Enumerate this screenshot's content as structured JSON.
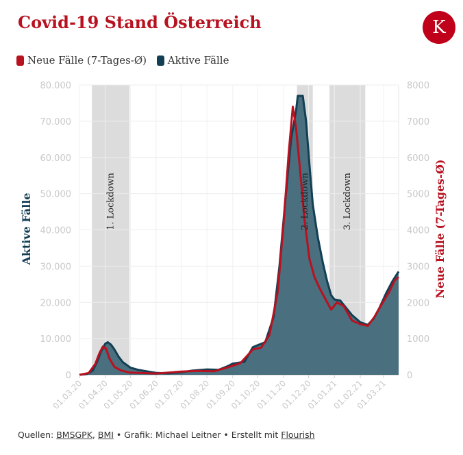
{
  "header": {
    "title": "Covid-19 Stand Österreich",
    "logo_letter": "K"
  },
  "colors": {
    "title": "#b8111f",
    "new_cases": "#b8111f",
    "active_cases": "#123f54",
    "area_fill": "#4a6f7e",
    "lockdown_band": "#dcdcdc",
    "logo_bg": "#c0001a"
  },
  "legend": {
    "items": [
      {
        "label": "Neue Fälle (7-Tages-Ø)",
        "color": "#b8111f"
      },
      {
        "label": "Aktive Fälle",
        "color": "#123f54"
      }
    ]
  },
  "footer": {
    "prefix": "Quellen: ",
    "source1": "BMSGPK",
    "sep1": ", ",
    "source2": "BMI",
    "middle": " • Grafik: Michael Leitner • Erstellt mit ",
    "tool": "Flourish"
  },
  "chart_data": {
    "type": "area",
    "ylabel_left": "Aktive Fälle",
    "ylabel_right": "Neue Fälle (7-Tages-Ø)",
    "ylim_left": [
      0,
      80000
    ],
    "ylim_right": [
      0,
      8000
    ],
    "yticks_left": [
      "0",
      "10.000",
      "20.000",
      "30.000",
      "40.000",
      "50.000",
      "60.000",
      "70.000",
      "80.000"
    ],
    "yticks_right": [
      "0",
      "1000",
      "2000",
      "3000",
      "4000",
      "5000",
      "6000",
      "7000",
      "8000"
    ],
    "xticks": [
      "01.03.20",
      "01.04.20",
      "01.05.20",
      "01.06.20",
      "01.07.20",
      "01.08.20",
      "01.09.20",
      "01.10.20",
      "01.11.20",
      "01.12.20",
      "01.01.21",
      "01.02.21",
      "01.03.21"
    ],
    "x_start": "2020-03-01",
    "x_end": "2021-03-19",
    "grid": true,
    "legend_position": "top-left",
    "lockdowns": [
      {
        "label": "1. Lockdown",
        "start": "2020-03-16",
        "end": "2020-04-30"
      },
      {
        "label": "2. Lockdown",
        "start": "2020-11-17",
        "end": "2020-12-06"
      },
      {
        "label": "3. Lockdown",
        "start": "2020-12-26",
        "end": "2021-02-07"
      }
    ],
    "series": [
      {
        "name": "Aktive Fälle",
        "axis": "left",
        "points": [
          [
            "2020-03-01",
            0
          ],
          [
            "2020-03-10",
            200
          ],
          [
            "2020-03-17",
            1200
          ],
          [
            "2020-03-22",
            3500
          ],
          [
            "2020-03-27",
            6500
          ],
          [
            "2020-04-01",
            8600
          ],
          [
            "2020-04-04",
            9000
          ],
          [
            "2020-04-08",
            8300
          ],
          [
            "2020-04-12",
            7000
          ],
          [
            "2020-04-17",
            5000
          ],
          [
            "2020-04-22",
            3500
          ],
          [
            "2020-05-01",
            2000
          ],
          [
            "2020-05-10",
            1400
          ],
          [
            "2020-05-20",
            1000
          ],
          [
            "2020-06-01",
            550
          ],
          [
            "2020-06-15",
            400
          ],
          [
            "2020-07-01",
            700
          ],
          [
            "2020-07-15",
            1200
          ],
          [
            "2020-08-01",
            1500
          ],
          [
            "2020-08-15",
            1400
          ],
          [
            "2020-08-25",
            2300
          ],
          [
            "2020-09-01",
            3100
          ],
          [
            "2020-09-15",
            3600
          ],
          [
            "2020-09-25",
            7600
          ],
          [
            "2020-10-01",
            8200
          ],
          [
            "2020-10-10",
            9000
          ],
          [
            "2020-10-20",
            16000
          ],
          [
            "2020-10-27",
            30000
          ],
          [
            "2020-11-03",
            48000
          ],
          [
            "2020-11-10",
            65000
          ],
          [
            "2020-11-16",
            73000
          ],
          [
            "2020-11-18",
            77000
          ],
          [
            "2020-11-24",
            77000
          ],
          [
            "2020-11-28",
            70000
          ],
          [
            "2020-12-02",
            58000
          ],
          [
            "2020-12-06",
            47000
          ],
          [
            "2020-12-12",
            38000
          ],
          [
            "2020-12-18",
            31000
          ],
          [
            "2020-12-23",
            26000
          ],
          [
            "2020-12-28",
            22000
          ],
          [
            "2021-01-01",
            20800
          ],
          [
            "2021-01-08",
            20500
          ],
          [
            "2021-01-15",
            18500
          ],
          [
            "2021-01-22",
            16500
          ],
          [
            "2021-02-01",
            14500
          ],
          [
            "2021-02-10",
            13800
          ],
          [
            "2021-02-17",
            15500
          ],
          [
            "2021-02-24",
            18500
          ],
          [
            "2021-03-04",
            22500
          ],
          [
            "2021-03-12",
            26000
          ],
          [
            "2021-03-19",
            28500
          ]
        ]
      },
      {
        "name": "Neue Fälle (7-Tages-Ø)",
        "axis": "right",
        "points": [
          [
            "2020-03-01",
            0
          ],
          [
            "2020-03-12",
            50
          ],
          [
            "2020-03-20",
            300
          ],
          [
            "2020-03-25",
            600
          ],
          [
            "2020-03-29",
            780
          ],
          [
            "2020-04-02",
            720
          ],
          [
            "2020-04-06",
            450
          ],
          [
            "2020-04-12",
            220
          ],
          [
            "2020-04-20",
            120
          ],
          [
            "2020-05-01",
            60
          ],
          [
            "2020-06-01",
            35
          ],
          [
            "2020-07-01",
            90
          ],
          [
            "2020-07-20",
            110
          ],
          [
            "2020-08-10",
            100
          ],
          [
            "2020-08-25",
            200
          ],
          [
            "2020-09-10",
            320
          ],
          [
            "2020-09-25",
            700
          ],
          [
            "2020-10-05",
            750
          ],
          [
            "2020-10-15",
            1100
          ],
          [
            "2020-10-25",
            2300
          ],
          [
            "2020-11-01",
            4200
          ],
          [
            "2020-11-07",
            6100
          ],
          [
            "2020-11-12",
            7400
          ],
          [
            "2020-11-16",
            6800
          ],
          [
            "2020-11-21",
            5600
          ],
          [
            "2020-11-26",
            4300
          ],
          [
            "2020-12-02",
            3200
          ],
          [
            "2020-12-08",
            2700
          ],
          [
            "2020-12-14",
            2400
          ],
          [
            "2020-12-21",
            2100
          ],
          [
            "2020-12-28",
            1800
          ],
          [
            "2021-01-04",
            2000
          ],
          [
            "2021-01-12",
            1900
          ],
          [
            "2021-01-22",
            1500
          ],
          [
            "2021-02-01",
            1400
          ],
          [
            "2021-02-10",
            1350
          ],
          [
            "2021-02-18",
            1600
          ],
          [
            "2021-02-28",
            2000
          ],
          [
            "2021-03-08",
            2300
          ],
          [
            "2021-03-14",
            2600
          ],
          [
            "2021-03-19",
            2700
          ]
        ]
      }
    ]
  }
}
